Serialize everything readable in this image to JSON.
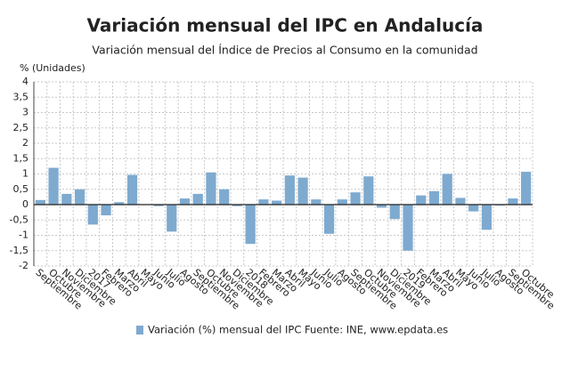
{
  "chart_data": {
    "type": "bar",
    "title": "Variación mensual del IPC en Andalucía",
    "subtitle": "Variación mensual del Índice de Precios al Consumo en la comunidad",
    "y_label": "% (Unidades)",
    "source": "Fuente: INE, www.epdata.es",
    "categories": [
      "Septiembre",
      "Octubre",
      "Noviembre",
      "Diciembre",
      "2017",
      "Febrero",
      "Marzo",
      "Abril",
      "Mayo",
      "Junio",
      "Julio",
      "Agosto",
      "Septiembre",
      "Octubre",
      "Noviembre",
      "Diciembre",
      "2018",
      "Febrero",
      "Marzo",
      "Abril",
      "Mayo",
      "Junio",
      "Julio",
      "Agosto",
      "Septiembre",
      "Octubre",
      "Noviembre",
      "Diciembre",
      "2019",
      "Febrero",
      "Marzo",
      "Abril",
      "Mayo",
      "Junio",
      "Julio",
      "Agosto",
      "Septiembre",
      "Octubre"
    ],
    "series": [
      {
        "name": "Variación (%) mensual del IPC",
        "color": "#7eaacf",
        "values": [
          0.15,
          1.2,
          0.35,
          0.5,
          -0.65,
          -0.35,
          0.08,
          0.97,
          0,
          -0.05,
          -0.88,
          0.2,
          0.35,
          1.05,
          0.5,
          -0.05,
          -1.28,
          0.17,
          0.13,
          0.95,
          0.88,
          0.17,
          -0.95,
          0.17,
          0.4,
          0.92,
          -0.1,
          -0.47,
          -1.5,
          0.3,
          0.44,
          1.0,
          0.22,
          -0.22,
          -0.82,
          -0.03,
          0.2,
          1.07
        ]
      }
    ],
    "ylim": [
      -2,
      4
    ],
    "yticks": [
      -2,
      {
        "value": -1.5,
        "label": "-1,5"
      },
      -1,
      {
        "value": -0.5,
        "label": "-0,5"
      },
      0,
      {
        "value": 0.5,
        "label": "0,5"
      },
      1,
      {
        "value": 1.5,
        "label": "1,5"
      },
      2,
      {
        "value": 2.5,
        "label": "2,5"
      },
      3,
      {
        "value": 3.5,
        "label": "3,5"
      },
      4
    ],
    "grid": true
  }
}
